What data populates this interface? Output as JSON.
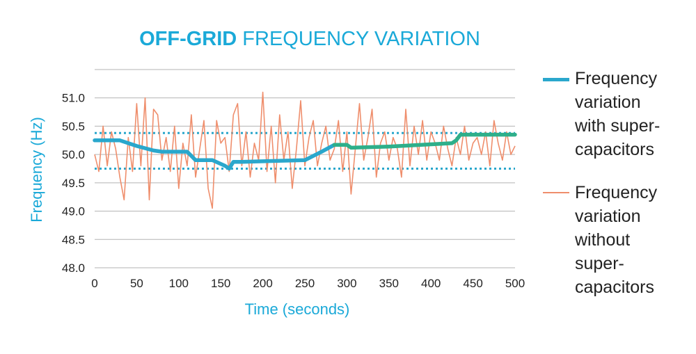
{
  "chart_data": {
    "type": "line",
    "title_bold": "OFF-GRID",
    "title_rest": " FREQUENCY VARIATION",
    "xlabel": "Time (seconds)",
    "ylabel": "Frequency (Hz)",
    "xlim": [
      0,
      500
    ],
    "ylim": [
      48.0,
      51.5
    ],
    "x_ticks": [
      "0",
      "50",
      "100",
      "150",
      "200",
      "250",
      "300",
      "350",
      "400",
      "450",
      "500"
    ],
    "y_ticks": [
      "48.0",
      "48.5",
      "49.0",
      "49.5",
      "50.0",
      "50.5",
      "51.0"
    ],
    "thresholds": [
      50.38,
      49.75
    ],
    "grid": true,
    "legend_position": "right",
    "colors": {
      "with_early": "#2aa7cc",
      "with_late": "#2eaf8a",
      "without": "#ef8e6c",
      "threshold": "#2aa7cc",
      "grid": "#b3b3b3",
      "axis_text": "#222222",
      "axis_label": "#1aa9d8"
    },
    "series": [
      {
        "name": "Frequency variation with super-capacitors",
        "x": [
          0,
          25,
          30,
          50,
          70,
          80,
          100,
          110,
          120,
          140,
          155,
          160,
          165,
          175,
          200,
          250,
          270,
          285,
          300,
          305,
          350,
          400,
          425,
          430,
          435,
          445,
          500
        ],
        "y": [
          50.25,
          50.25,
          50.25,
          50.15,
          50.07,
          50.05,
          50.05,
          50.05,
          49.9,
          49.9,
          49.8,
          49.75,
          49.87,
          49.87,
          49.88,
          49.9,
          50.05,
          50.17,
          50.17,
          50.12,
          50.14,
          50.18,
          50.2,
          50.25,
          50.35,
          50.35,
          50.35
        ]
      },
      {
        "name": "Frequency variation without super-capacitors",
        "x": [
          0,
          5,
          10,
          15,
          20,
          25,
          30,
          35,
          40,
          45,
          50,
          55,
          60,
          65,
          70,
          75,
          80,
          85,
          90,
          95,
          100,
          105,
          110,
          115,
          120,
          125,
          130,
          135,
          140,
          145,
          150,
          155,
          160,
          165,
          170,
          175,
          180,
          185,
          190,
          195,
          200,
          205,
          210,
          215,
          220,
          225,
          230,
          235,
          240,
          245,
          250,
          255,
          260,
          265,
          270,
          275,
          280,
          285,
          290,
          295,
          300,
          305,
          310,
          315,
          320,
          325,
          330,
          335,
          340,
          345,
          350,
          355,
          360,
          365,
          370,
          375,
          380,
          385,
          390,
          395,
          400,
          405,
          410,
          415,
          420,
          425,
          430,
          435,
          440,
          445,
          450,
          455,
          460,
          465,
          470,
          475,
          480,
          485,
          490,
          495,
          500
        ],
        "y": [
          50.0,
          49.7,
          50.5,
          49.8,
          50.4,
          50.1,
          49.6,
          49.2,
          50.3,
          49.7,
          50.9,
          49.8,
          51.0,
          49.2,
          50.8,
          50.7,
          49.9,
          50.3,
          49.7,
          50.5,
          49.4,
          50.2,
          49.8,
          50.7,
          49.6,
          50.1,
          50.6,
          49.4,
          49.05,
          50.6,
          50.2,
          50.3,
          49.7,
          50.7,
          50.9,
          49.8,
          50.4,
          49.6,
          50.2,
          49.9,
          51.1,
          49.7,
          50.5,
          49.5,
          50.7,
          49.9,
          50.4,
          49.4,
          50.1,
          50.95,
          49.8,
          50.3,
          50.6,
          49.8,
          50.2,
          50.5,
          49.9,
          50.1,
          50.6,
          49.7,
          50.4,
          49.3,
          50.1,
          50.9,
          49.9,
          50.3,
          50.8,
          49.6,
          50.2,
          50.4,
          49.9,
          50.3,
          50.1,
          49.6,
          50.8,
          49.8,
          50.5,
          50.0,
          50.6,
          49.9,
          50.4,
          50.2,
          49.9,
          50.5,
          50.1,
          49.8,
          50.3,
          50.0,
          50.5,
          49.9,
          50.2,
          50.3,
          50.0,
          50.4,
          49.8,
          50.6,
          50.2,
          49.9,
          50.4,
          50.0,
          50.15
        ]
      }
    ]
  },
  "legend": {
    "with_lines": [
      "Frequency",
      "variation",
      "with super-",
      "capacitors"
    ],
    "without_lines": [
      "Frequency",
      "variation",
      "without",
      "super-",
      "capacitors"
    ]
  }
}
